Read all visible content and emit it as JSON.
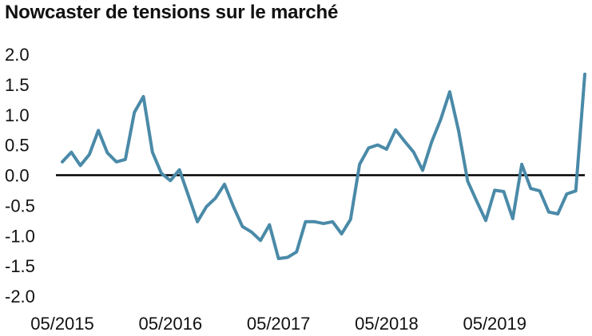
{
  "chart_data": {
    "type": "line",
    "title": "Nowcaster de tensions sur le marché",
    "xlabel": "",
    "ylabel": "",
    "ylim": [
      -2.0,
      2.0
    ],
    "yticks": [
      "2.0",
      "1.5",
      "1.0",
      "0.5",
      "0.0",
      "-0.5",
      "-1.0",
      "-1.5",
      "-2.0"
    ],
    "xticks": [
      "05/2015",
      "05/2016",
      "05/2017",
      "05/2018",
      "05/2019"
    ],
    "grid": false,
    "legend": "none",
    "zero_line": true,
    "series": [
      {
        "color": "#4a8aa8",
        "x": [
          "2015-05",
          "2015-06",
          "2015-07",
          "2015-08",
          "2015-09",
          "2015-10",
          "2015-11",
          "2015-12",
          "2016-01",
          "2016-02",
          "2016-03",
          "2016-04",
          "2016-05",
          "2016-06",
          "2016-07",
          "2016-08",
          "2016-09",
          "2016-10",
          "2016-11",
          "2016-12",
          "2017-01",
          "2017-02",
          "2017-03",
          "2017-04",
          "2017-05",
          "2017-06",
          "2017-07",
          "2017-08",
          "2017-09",
          "2017-10",
          "2017-11",
          "2017-12",
          "2018-01",
          "2018-02",
          "2018-03",
          "2018-04",
          "2018-05",
          "2018-06",
          "2018-07",
          "2018-08",
          "2018-09",
          "2018-10",
          "2018-11",
          "2018-12",
          "2019-01",
          "2019-02",
          "2019-03",
          "2019-04",
          "2019-05",
          "2019-06",
          "2019-07",
          "2019-08",
          "2019-09",
          "2019-10",
          "2019-11",
          "2019-12",
          "2020-01",
          "2020-02",
          "2020-03"
        ],
        "values": [
          0.22,
          0.38,
          0.16,
          0.34,
          0.74,
          0.37,
          0.22,
          0.26,
          1.04,
          1.3,
          0.38,
          0.03,
          -0.09,
          0.09,
          -0.34,
          -0.77,
          -0.52,
          -0.38,
          -0.15,
          -0.52,
          -0.85,
          -0.94,
          -1.08,
          -0.82,
          -1.38,
          -1.36,
          -1.27,
          -0.77,
          -0.77,
          -0.8,
          -0.77,
          -0.97,
          -0.73,
          0.18,
          0.45,
          0.5,
          0.43,
          0.75,
          0.56,
          0.38,
          0.08,
          0.55,
          0.92,
          1.38,
          0.73,
          -0.1,
          -0.43,
          -0.75,
          -0.25,
          -0.27,
          -0.72,
          0.18,
          -0.22,
          -0.26,
          -0.61,
          -0.64,
          -0.31,
          -0.26,
          1.67
        ]
      }
    ]
  }
}
